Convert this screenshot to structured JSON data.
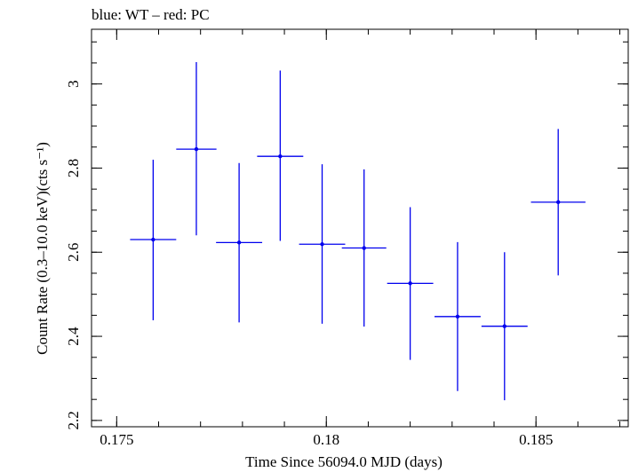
{
  "chart_data": {
    "type": "scatter",
    "title": "blue: WT – red: PC",
    "xlabel": "Time Since 56094.0 MJD (days)",
    "ylabel": "Count Rate (0.3–10.0 keV)(cts s⁻¹)",
    "xlim": [
      0.1744,
      0.1872
    ],
    "ylim": [
      2.185,
      3.13
    ],
    "x_ticks": [
      {
        "value": 0.175,
        "label": "0.175"
      },
      {
        "value": 0.18,
        "label": "0.18"
      },
      {
        "value": 0.185,
        "label": "0.185"
      }
    ],
    "y_ticks": [
      {
        "value": 2.2,
        "label": "2.2"
      },
      {
        "value": 2.4,
        "label": "2.4"
      },
      {
        "value": 2.6,
        "label": "2.6"
      },
      {
        "value": 2.8,
        "label": "2.8"
      },
      {
        "value": 3.0,
        "label": "3"
      }
    ],
    "x_minor_step": 0.001,
    "y_minor_step": 0.05,
    "grid": false,
    "series": [
      {
        "color": "#0000ee",
        "points": [
          {
            "x": 0.17587,
            "xerr": 0.00055,
            "y": 2.63,
            "ylo": 2.438,
            "yhi": 2.82
          },
          {
            "x": 0.1769,
            "xerr": 0.00048,
            "y": 2.845,
            "ylo": 2.64,
            "yhi": 3.052
          },
          {
            "x": 0.17792,
            "xerr": 0.00055,
            "y": 2.623,
            "ylo": 2.433,
            "yhi": 2.812
          },
          {
            "x": 0.1789,
            "xerr": 0.00055,
            "y": 2.828,
            "ylo": 2.627,
            "yhi": 3.032
          },
          {
            "x": 0.1799,
            "xerr": 0.00055,
            "y": 2.619,
            "ylo": 2.43,
            "yhi": 2.809
          },
          {
            "x": 0.1809,
            "xerr": 0.00053,
            "y": 2.61,
            "ylo": 2.423,
            "yhi": 2.797
          },
          {
            "x": 0.182,
            "xerr": 0.00055,
            "y": 2.526,
            "ylo": 2.344,
            "yhi": 2.707
          },
          {
            "x": 0.18313,
            "xerr": 0.00055,
            "y": 2.447,
            "ylo": 2.27,
            "yhi": 2.624
          },
          {
            "x": 0.18425,
            "xerr": 0.00055,
            "y": 2.424,
            "ylo": 2.248,
            "yhi": 2.6
          },
          {
            "x": 0.18553,
            "xerr": 0.00065,
            "y": 2.719,
            "ylo": 2.545,
            "yhi": 2.893
          }
        ]
      }
    ]
  }
}
